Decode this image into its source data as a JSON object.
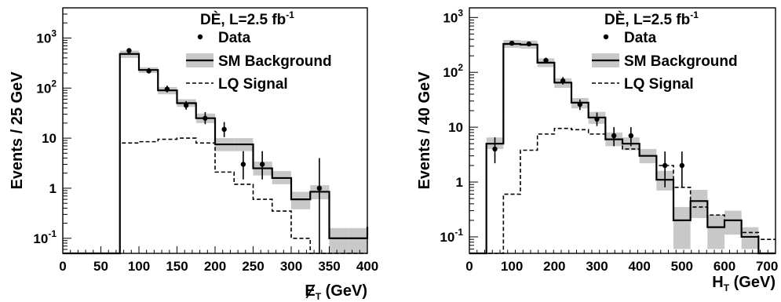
{
  "chart_data": [
    {
      "type": "histogram",
      "title": "",
      "xlabel": {
        "main": "E",
        "sub": "T",
        "unit": " (GeV)",
        "slashed": true
      },
      "ylabel": "Events / 25 GeV",
      "xlim": [
        0,
        400
      ],
      "ylim": [
        0.05,
        4000
      ],
      "log_y": true,
      "xticks": [
        0,
        50,
        100,
        150,
        200,
        250,
        300,
        350,
        400
      ],
      "yticks": [
        {
          "v": 0.1,
          "base": "10",
          "exp": "-1"
        },
        {
          "v": 1,
          "base": "1",
          "exp": ""
        },
        {
          "v": 10,
          "base": "10",
          "exp": ""
        },
        {
          "v": 100,
          "base": "10",
          "exp": "2"
        },
        {
          "v": 1000,
          "base": "10",
          "exp": "3"
        }
      ],
      "legend": {
        "position": "top-right",
        "title": {
          "pre": "DÈ, L=2.5 fb",
          "sup": "-1"
        },
        "data_label": "Data",
        "bkg_label": "SM Background",
        "sig_label": "LQ Signal"
      },
      "bin_edges": [
        0,
        75,
        100,
        125,
        150,
        175,
        200,
        225,
        250,
        275,
        300,
        325,
        350,
        375,
        400
      ],
      "background": [
        0.05,
        480,
        230,
        90,
        50,
        25,
        7.5,
        7.5,
        2.5,
        1.6,
        0.6,
        0.85,
        0.1,
        0.1,
        0.17
      ],
      "background_band": [
        [
          0.05,
          0.05
        ],
        [
          400,
          560
        ],
        [
          200,
          260
        ],
        [
          75,
          105
        ],
        [
          42,
          60
        ],
        [
          20,
          31
        ],
        [
          5.5,
          10
        ],
        [
          5.5,
          10
        ],
        [
          1.8,
          3.4
        ],
        [
          1.2,
          2.2
        ],
        [
          0.38,
          0.85
        ],
        [
          0.6,
          1.15
        ],
        [
          0.05,
          0.16
        ],
        [
          0.05,
          0.16
        ],
        [
          0.12,
          0.27
        ]
      ],
      "signal": [
        0.05,
        8,
        8.5,
        9.5,
        10,
        8,
        2.1,
        1.2,
        0.6,
        0.35,
        0.1,
        0.05,
        0.05,
        0.05,
        0.05
      ],
      "data": [
        {
          "x": 87,
          "y": 560,
          "lo": 510,
          "hi": 610
        },
        {
          "x": 113,
          "y": 220,
          "lo": 195,
          "hi": 250
        },
        {
          "x": 137,
          "y": 95,
          "lo": 82,
          "hi": 112
        },
        {
          "x": 162,
          "y": 45,
          "lo": 37,
          "hi": 55
        },
        {
          "x": 187,
          "y": 25,
          "lo": 19,
          "hi": 33
        },
        {
          "x": 212,
          "y": 15,
          "lo": 10.5,
          "hi": 21
        },
        {
          "x": 237,
          "y": 3,
          "lo": 1.5,
          "hi": 5.5
        },
        {
          "x": 262,
          "y": 3,
          "lo": 1.5,
          "hi": 5.5
        },
        {
          "x": 337,
          "y": 1,
          "lo": 0.05,
          "hi": 4
        }
      ]
    },
    {
      "type": "histogram",
      "title": "",
      "xlabel": {
        "main": "H",
        "sub": "T",
        "unit": " (GeV)",
        "slashed": false
      },
      "ylabel": "Events / 40 GeV",
      "xlim": [
        0,
        720
      ],
      "ylim": [
        0.05,
        1500
      ],
      "log_y": true,
      "xticks": [
        0,
        100,
        200,
        300,
        400,
        500,
        600,
        700
      ],
      "yticks": [
        {
          "v": 0.1,
          "base": "10",
          "exp": "-1"
        },
        {
          "v": 1,
          "base": "1",
          "exp": ""
        },
        {
          "v": 10,
          "base": "10",
          "exp": ""
        },
        {
          "v": 100,
          "base": "10",
          "exp": "2"
        },
        {
          "v": 1000,
          "base": "10",
          "exp": "3"
        }
      ],
      "legend": {
        "position": "top-right",
        "title": {
          "pre": "DÈ, L=2.5 fb",
          "sup": "-1"
        },
        "data_label": "Data",
        "bkg_label": "SM Background",
        "sig_label": "LQ Signal"
      },
      "bin_edges": [
        0,
        40,
        80,
        120,
        160,
        200,
        240,
        280,
        320,
        360,
        400,
        440,
        480,
        520,
        560,
        600,
        640,
        680,
        720
      ],
      "background": [
        0.05,
        5,
        330,
        320,
        150,
        65,
        28,
        15,
        6,
        5,
        3,
        1.1,
        0.2,
        0.45,
        0.15,
        0.2,
        0.1,
        0.05,
        0.05
      ],
      "background_band": [
        [
          0.05,
          0.05
        ],
        [
          4,
          6.5
        ],
        [
          280,
          390
        ],
        [
          270,
          380
        ],
        [
          125,
          180
        ],
        [
          52,
          78
        ],
        [
          22,
          34
        ],
        [
          11.5,
          19
        ],
        [
          4.5,
          8
        ],
        [
          3.8,
          6.5
        ],
        [
          2.2,
          4
        ],
        [
          0.7,
          1.6
        ],
        [
          0.06,
          0.35
        ],
        [
          0.22,
          0.72
        ],
        [
          0.06,
          0.25
        ],
        [
          0.11,
          0.3
        ],
        [
          0.06,
          0.15
        ],
        [
          0.05,
          0.05
        ],
        [
          0.05,
          0.05
        ]
      ],
      "signal": [
        0.05,
        0.05,
        0.6,
        3.8,
        7.5,
        9.5,
        9,
        7.5,
        6,
        4,
        3,
        2,
        0.8,
        0.35,
        0.25,
        0.2,
        0.12,
        0.09,
        0.09
      ],
      "data": [
        {
          "x": 60,
          "y": 4,
          "lo": 2.2,
          "hi": 6.5
        },
        {
          "x": 100,
          "y": 340,
          "lo": 310,
          "hi": 370
        },
        {
          "x": 140,
          "y": 330,
          "lo": 300,
          "hi": 360
        },
        {
          "x": 180,
          "y": 165,
          "lo": 145,
          "hi": 185
        },
        {
          "x": 220,
          "y": 70,
          "lo": 60,
          "hi": 82
        },
        {
          "x": 260,
          "y": 26,
          "lo": 20.5,
          "hi": 32
        },
        {
          "x": 300,
          "y": 14,
          "lo": 10.5,
          "hi": 18.5
        },
        {
          "x": 340,
          "y": 7,
          "lo": 4.5,
          "hi": 10
        },
        {
          "x": 380,
          "y": 7,
          "lo": 4.5,
          "hi": 10
        },
        {
          "x": 460,
          "y": 2,
          "lo": 0.8,
          "hi": 3.6
        },
        {
          "x": 500,
          "y": 2,
          "lo": 0.8,
          "hi": 3.6
        }
      ]
    }
  ]
}
